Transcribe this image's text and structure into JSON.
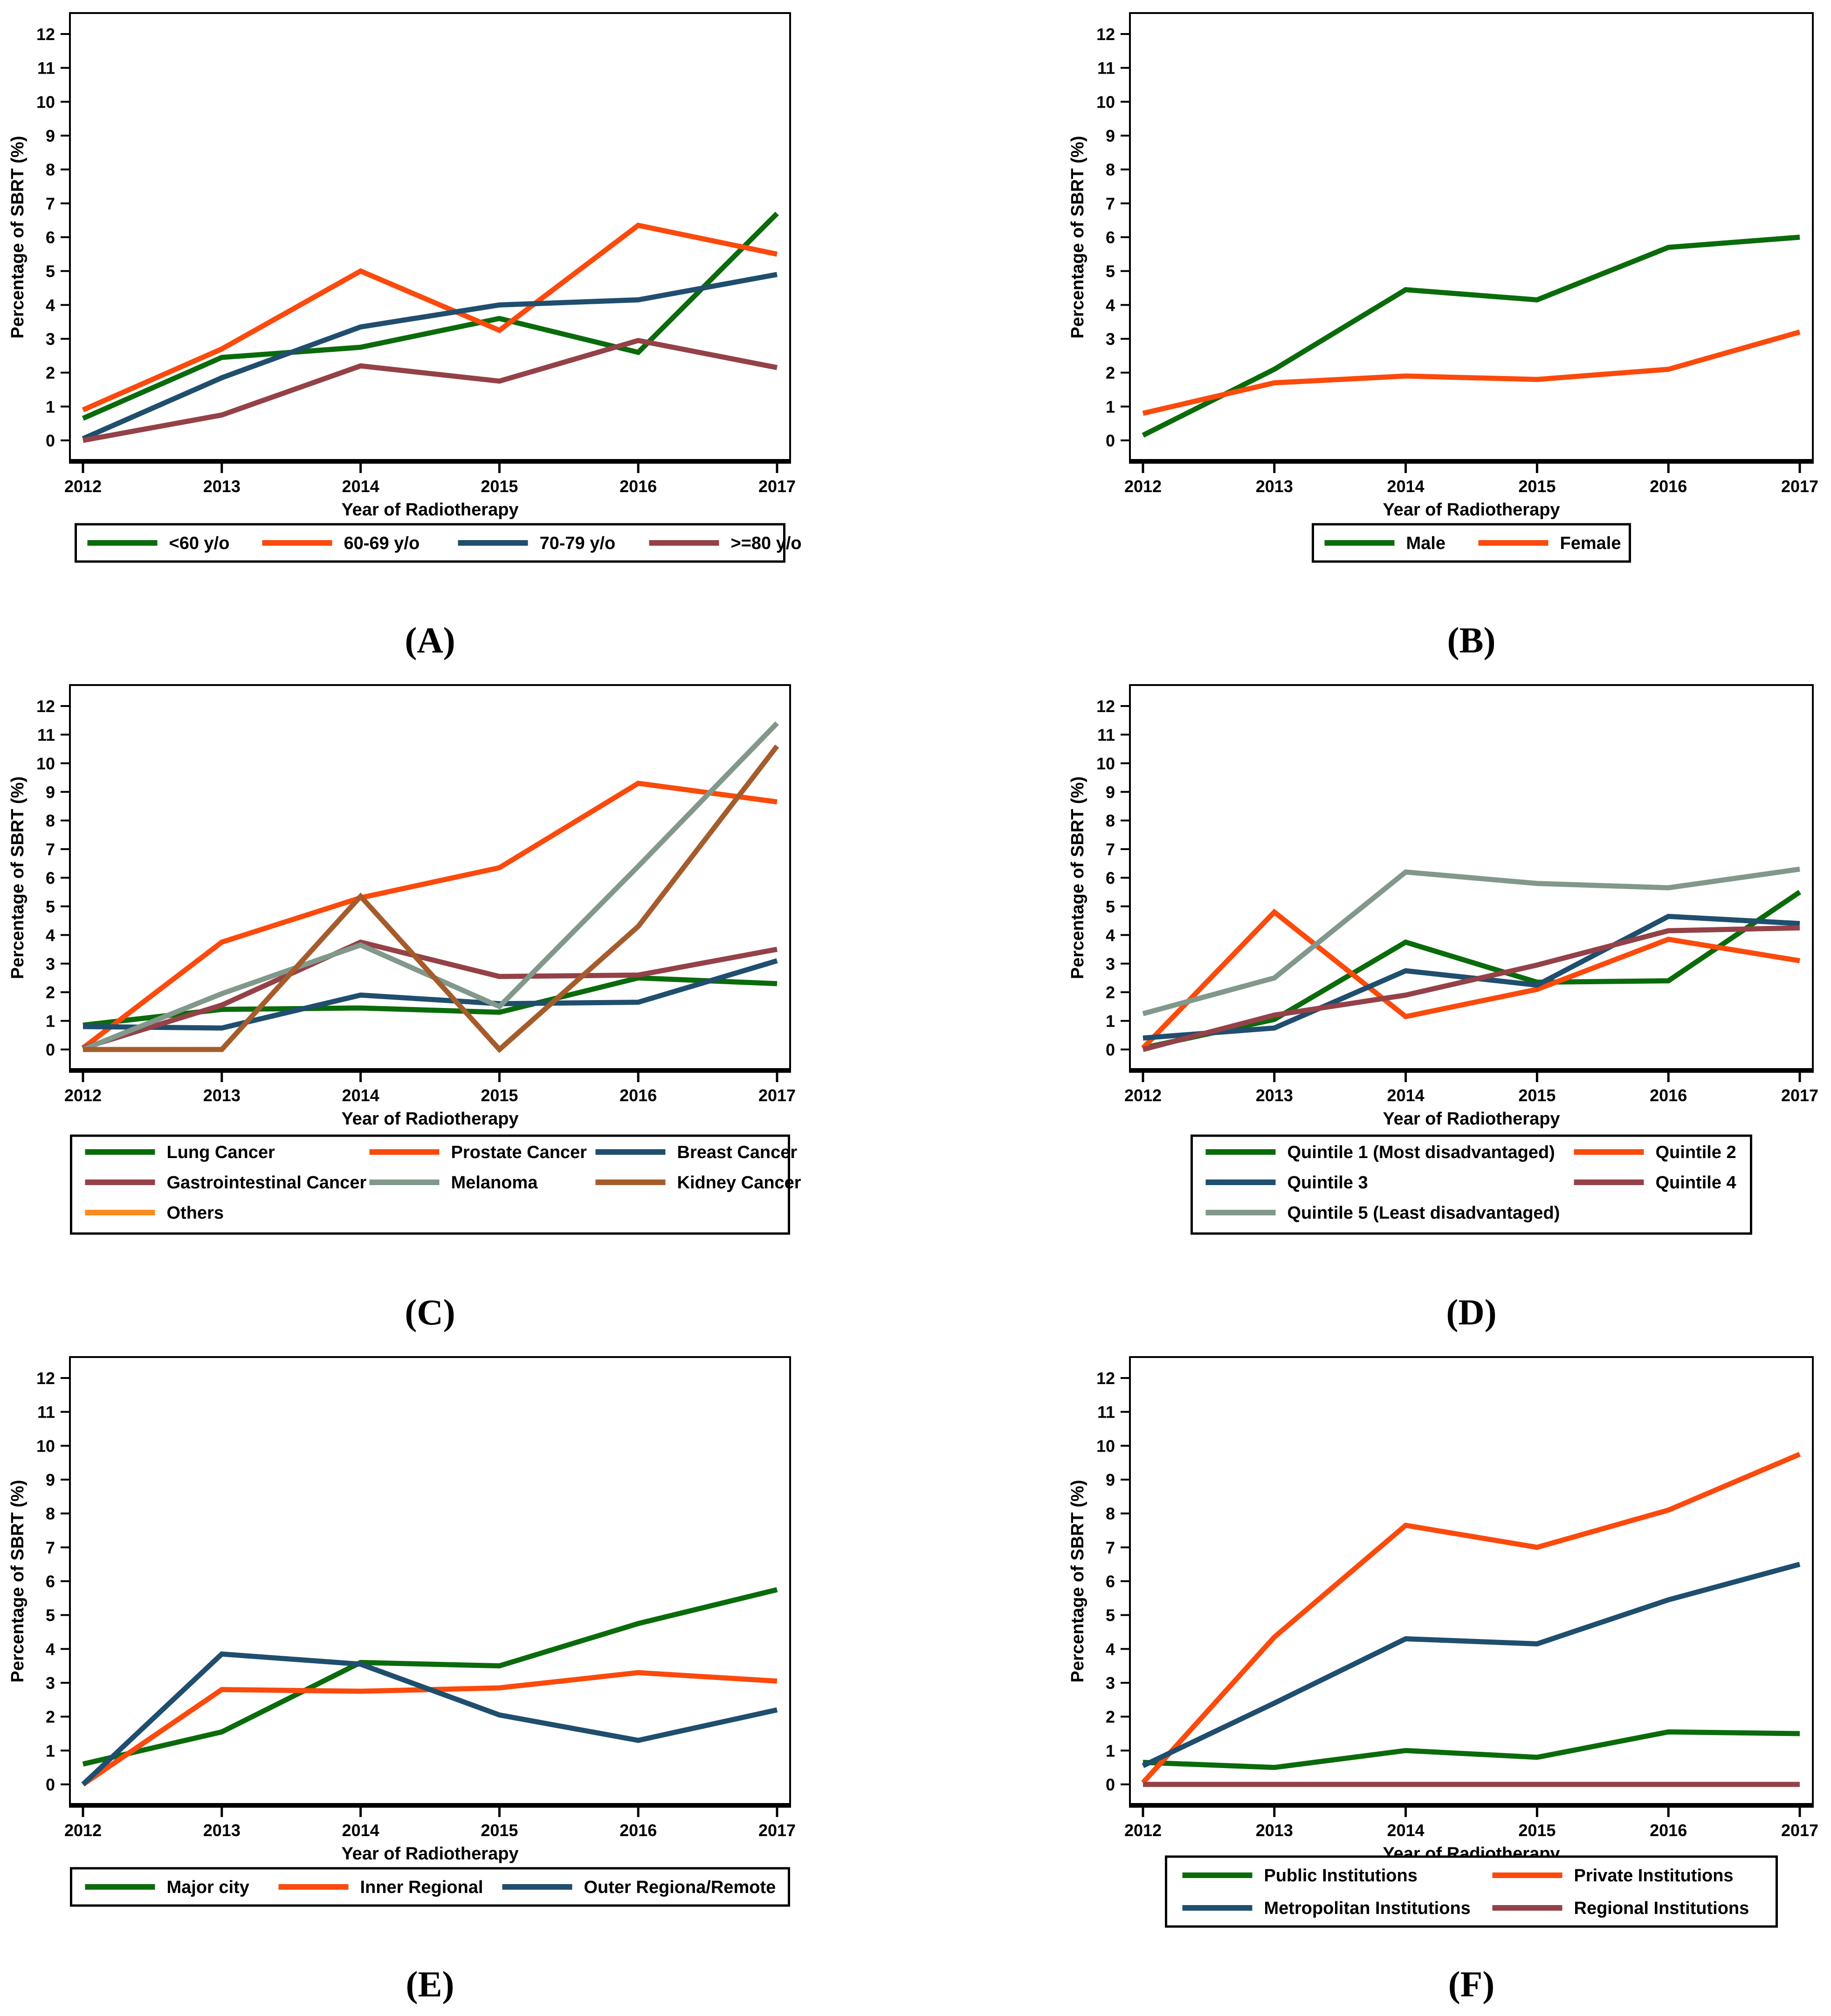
{
  "figure": {
    "x_axis_label": "Year of Radiotherapy",
    "y_axis_label": "Percentage of SBRT (%)",
    "years": [
      2012,
      2013,
      2014,
      2015,
      2016,
      2017
    ],
    "y_ticks": [
      0,
      1,
      2,
      3,
      4,
      5,
      6,
      7,
      8,
      9,
      10,
      11,
      12
    ],
    "palette": {
      "green": "#0a6b0a",
      "orange_red": "#fb4a0c",
      "navy": "#1f4e6e",
      "maroon": "#944148",
      "sage": "#81988b",
      "sienna": "#a55c2c",
      "amber": "#fb8b1e"
    }
  },
  "chart_data": [
    {
      "id": "A",
      "caption": "(A)",
      "type": "line",
      "title": "",
      "xlabel": "Year of Radiotherapy",
      "ylabel": "Percentage of SBRT (%)",
      "x": [
        2012,
        2013,
        2014,
        2015,
        2016,
        2017
      ],
      "ylim": [
        0,
        12
      ],
      "yticks": [
        0,
        1,
        2,
        3,
        4,
        5,
        6,
        7,
        8,
        9,
        10,
        11,
        12
      ],
      "grid": false,
      "legend_position": "bottom",
      "series": [
        {
          "name": "<60 y/o",
          "color": "#0a6b0a",
          "values": [
            0.65,
            2.45,
            2.75,
            3.6,
            2.6,
            6.7
          ]
        },
        {
          "name": "60-69 y/o",
          "color": "#fb4a0c",
          "values": [
            0.9,
            2.7,
            5.0,
            3.25,
            6.35,
            5.5
          ]
        },
        {
          "name": "70-79 y/o",
          "color": "#1f4e6e",
          "values": [
            0.05,
            1.85,
            3.35,
            4.0,
            4.15,
            4.9
          ]
        },
        {
          "name": ">=80 y/o",
          "color": "#944148",
          "values": [
            0.0,
            0.75,
            2.2,
            1.75,
            2.95,
            2.15
          ]
        }
      ]
    },
    {
      "id": "B",
      "caption": "(B)",
      "type": "line",
      "title": "",
      "xlabel": "Year of Radiotherapy",
      "ylabel": "Percentage of SBRT (%)",
      "x": [
        2012,
        2013,
        2014,
        2015,
        2016,
        2017
      ],
      "ylim": [
        0,
        12
      ],
      "yticks": [
        0,
        1,
        2,
        3,
        4,
        5,
        6,
        7,
        8,
        9,
        10,
        11,
        12
      ],
      "grid": false,
      "legend_position": "bottom",
      "series": [
        {
          "name": "Male",
          "color": "#0a6b0a",
          "values": [
            0.15,
            2.1,
            4.45,
            4.15,
            5.7,
            6.0
          ]
        },
        {
          "name": "Female",
          "color": "#fb4a0c",
          "values": [
            0.8,
            1.7,
            1.9,
            1.8,
            2.1,
            3.2
          ]
        }
      ]
    },
    {
      "id": "C",
      "caption": "(C)",
      "type": "line",
      "title": "",
      "xlabel": "Year of Radiotherapy",
      "ylabel": "Percentage of SBRT (%)",
      "x": [
        2012,
        2013,
        2014,
        2015,
        2016,
        2017
      ],
      "ylim": [
        0,
        12
      ],
      "yticks": [
        0,
        1,
        2,
        3,
        4,
        5,
        6,
        7,
        8,
        9,
        10,
        11,
        12
      ],
      "grid": false,
      "legend_position": "bottom",
      "series": [
        {
          "name": "Lung Cancer",
          "color": "#0a6b0a",
          "values": [
            0.85,
            1.4,
            1.45,
            1.3,
            2.5,
            2.3
          ]
        },
        {
          "name": "Prostate Cancer",
          "color": "#fb4a0c",
          "values": [
            0.05,
            3.75,
            5.3,
            6.35,
            9.3,
            8.65
          ]
        },
        {
          "name": "Breast Cancer",
          "color": "#1f4e6e",
          "values": [
            0.8,
            0.75,
            1.9,
            1.6,
            1.65,
            3.1
          ]
        },
        {
          "name": "Gastrointestinal Cancer",
          "color": "#944148",
          "values": [
            0.05,
            1.55,
            3.75,
            2.55,
            2.6,
            3.5
          ]
        },
        {
          "name": "Melanoma",
          "color": "#81988b",
          "values": [
            0.0,
            1.95,
            3.65,
            1.5,
            6.4,
            11.4
          ]
        },
        {
          "name": "Kidney Cancer",
          "color": "#a55c2c",
          "values": [
            0.0,
            0.0,
            5.35,
            0.0,
            4.3,
            10.6
          ]
        },
        {
          "name": "Others",
          "color": "#fb8b1e",
          "values": []
        }
      ]
    },
    {
      "id": "D",
      "caption": "(D)",
      "type": "line",
      "title": "",
      "xlabel": "Year of Radiotherapy",
      "ylabel": "Percentage of SBRT (%)",
      "x": [
        2012,
        2013,
        2014,
        2015,
        2016,
        2017
      ],
      "ylim": [
        0,
        12
      ],
      "yticks": [
        0,
        1,
        2,
        3,
        4,
        5,
        6,
        7,
        8,
        9,
        10,
        11,
        12
      ],
      "grid": false,
      "legend_position": "bottom",
      "series": [
        {
          "name": "Quintile 1 (Most disadvantaged)",
          "color": "#0a6b0a",
          "values": [
            0.05,
            1.05,
            3.75,
            2.35,
            2.4,
            5.5
          ]
        },
        {
          "name": "Quintile 2",
          "color": "#fb4a0c",
          "values": [
            0.05,
            4.8,
            1.15,
            2.1,
            3.85,
            3.1
          ]
        },
        {
          "name": "Quintile 3",
          "color": "#1f4e6e",
          "values": [
            0.4,
            0.75,
            2.75,
            2.25,
            4.65,
            4.4
          ]
        },
        {
          "name": "Quintile 4",
          "color": "#944148",
          "values": [
            0.0,
            1.2,
            1.9,
            2.95,
            4.15,
            4.25
          ]
        },
        {
          "name": "Quintile 5 (Least disadvantaged)",
          "color": "#81988b",
          "values": [
            1.25,
            2.5,
            6.2,
            5.8,
            5.65,
            6.3
          ]
        }
      ]
    },
    {
      "id": "E",
      "caption": "(E)",
      "type": "line",
      "title": "",
      "xlabel": "Year of Radiotherapy",
      "ylabel": "Percentage of SBRT (%)",
      "x": [
        2012,
        2013,
        2014,
        2015,
        2016,
        2017
      ],
      "ylim": [
        0,
        12
      ],
      "yticks": [
        0,
        1,
        2,
        3,
        4,
        5,
        6,
        7,
        8,
        9,
        10,
        11,
        12
      ],
      "grid": false,
      "legend_position": "bottom",
      "series": [
        {
          "name": "Major city",
          "color": "#0a6b0a",
          "values": [
            0.6,
            1.55,
            3.6,
            3.5,
            4.75,
            5.75
          ]
        },
        {
          "name": "Inner Regional",
          "color": "#fb4a0c",
          "values": [
            0.0,
            2.8,
            2.75,
            2.85,
            3.3,
            3.05
          ]
        },
        {
          "name": "Outer Regiona/Remote",
          "color": "#1f4e6e",
          "values": [
            0.0,
            3.85,
            3.55,
            2.05,
            1.3,
            2.2
          ]
        }
      ]
    },
    {
      "id": "F",
      "caption": "(F)",
      "type": "line",
      "title": "",
      "xlabel": "Year of Radiotherapy",
      "ylabel": "Percentage of SBRT (%)",
      "x": [
        2012,
        2013,
        2014,
        2015,
        2016,
        2017
      ],
      "ylim": [
        0,
        12
      ],
      "yticks": [
        0,
        1,
        2,
        3,
        4,
        5,
        6,
        7,
        8,
        9,
        10,
        11,
        12
      ],
      "grid": false,
      "legend_position": "bottom",
      "series": [
        {
          "name": "Public Institutions",
          "color": "#0a6b0a",
          "values": [
            0.65,
            0.5,
            1.0,
            0.8,
            1.55,
            1.5
          ]
        },
        {
          "name": "Private Institutions",
          "color": "#fb4a0c",
          "values": [
            0.05,
            4.35,
            7.65,
            7.0,
            8.1,
            9.75
          ]
        },
        {
          "name": "Metropolitan Institutions",
          "color": "#1f4e6e",
          "values": [
            0.55,
            2.4,
            4.3,
            4.15,
            5.45,
            6.5
          ]
        },
        {
          "name": "Regional Institutions",
          "color": "#944148",
          "values": [
            0.0,
            0.0,
            0.0,
            0.0,
            0.0,
            0.0
          ]
        }
      ]
    }
  ]
}
